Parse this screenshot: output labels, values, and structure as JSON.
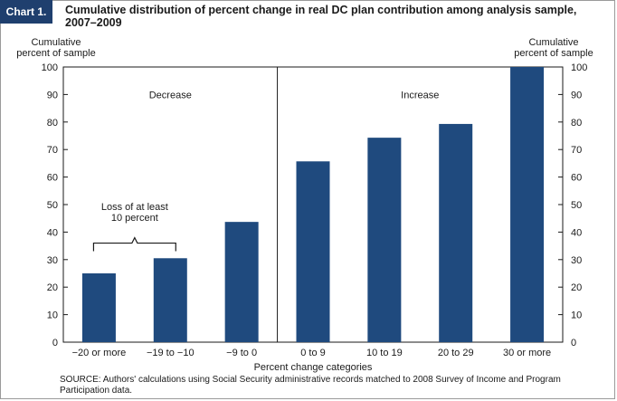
{
  "header": {
    "chart_number": "Chart 1.",
    "title_line1": "Cumulative distribution of percent change in real DC plan contribution among analysis sample,",
    "title_line2": "2007–2009"
  },
  "chart_data": {
    "type": "bar",
    "categories": [
      "−20 or more",
      "−19 to −10",
      "−9 to 0",
      "0 to 9",
      "10 to 19",
      "20 to 29",
      "30 or more"
    ],
    "values": [
      25,
      30.5,
      43.7,
      65.7,
      74.3,
      79.3,
      100
    ],
    "ylim": [
      0,
      100
    ],
    "yticks": [
      0,
      10,
      20,
      30,
      40,
      50,
      60,
      70,
      80,
      90,
      100
    ],
    "ylabel_left": [
      "Cumulative",
      "percent of sample"
    ],
    "ylabel_right": [
      "Cumulative",
      "percent of sample"
    ],
    "xlabel": "Percent change categories",
    "panels": [
      "Decrease",
      "Increase"
    ],
    "annotation": [
      "Loss of at least",
      "10 percent"
    ],
    "bar_color": "#1f4a7e"
  },
  "source": {
    "line1": "SOURCE:  Authors' calculations using Social Security administrative records matched to 2008 Survey of Income and Program",
    "line2": "Participation data."
  }
}
